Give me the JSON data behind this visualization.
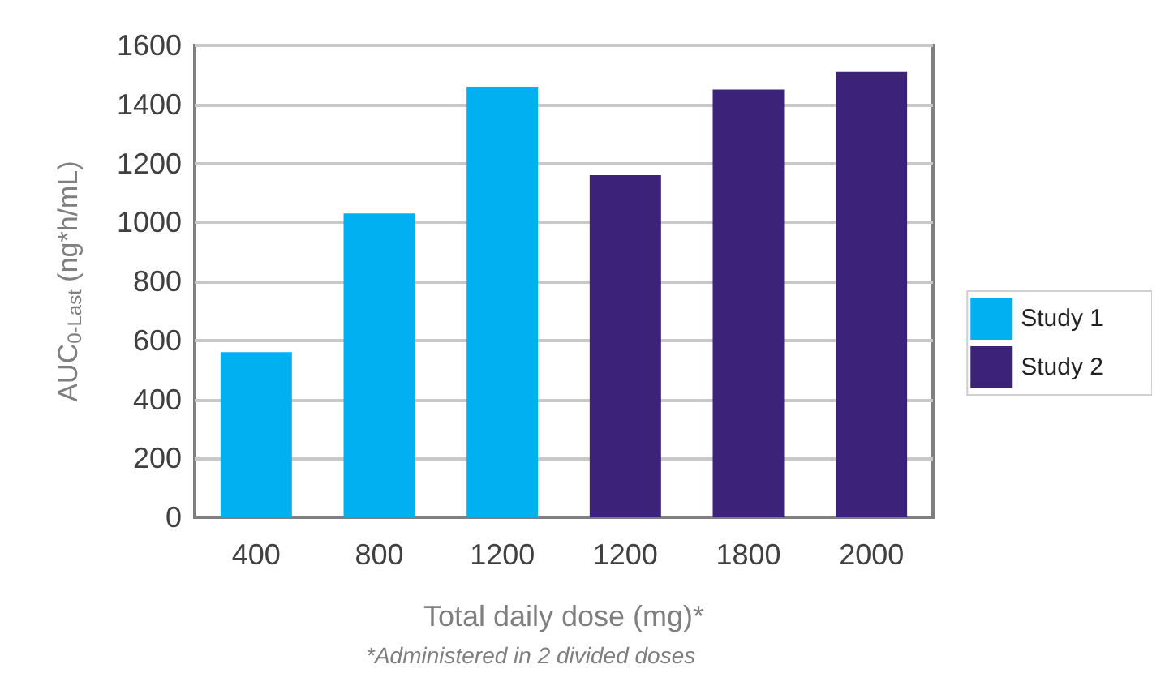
{
  "chart_data": {
    "type": "bar",
    "stacked": true,
    "categories": [
      "400",
      "800",
      "1200",
      "1200",
      "1800",
      "2000"
    ],
    "series": [
      {
        "name": "Study 1",
        "color": "#00b0f0",
        "values": [
          560,
          1030,
          1460,
          null,
          null,
          null
        ]
      },
      {
        "name": "Study 2",
        "color": "#3c2278",
        "values": [
          null,
          null,
          null,
          1160,
          1450,
          1510
        ]
      }
    ],
    "ylim": [
      0,
      1600
    ],
    "yticks": [
      0,
      200,
      400,
      600,
      800,
      1000,
      1200,
      1400,
      1600
    ],
    "grid": "y",
    "legend": "right",
    "xlabel": "Total daily dose (mg)*",
    "ylabel": "AUC$_{0-Last}$ (ng*h/mL)",
    "annotations": [
      "*Administered in 2 divided doses"
    ]
  }
}
